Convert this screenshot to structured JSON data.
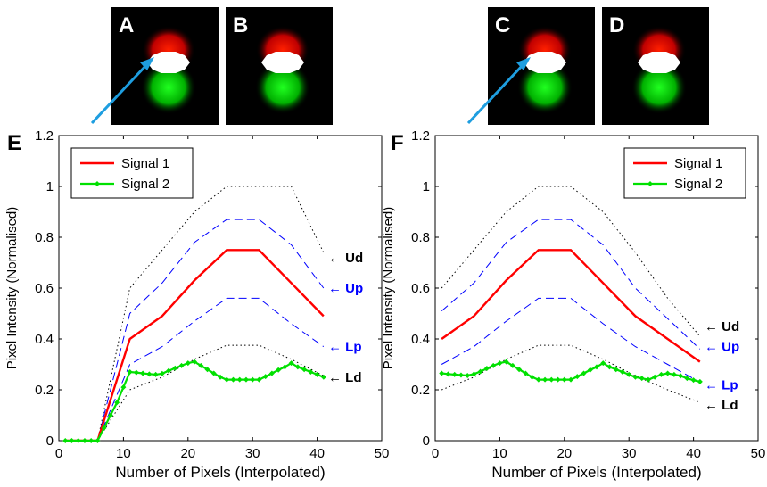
{
  "thumbnails": [
    {
      "letter": "A",
      "arrow": true
    },
    {
      "letter": "B",
      "arrow": false
    },
    {
      "letter": "C",
      "arrow": true
    },
    {
      "letter": "D",
      "arrow": false
    }
  ],
  "colors": {
    "signal1": "#ff0000",
    "signal2": "#00e000",
    "upper_lower_p": "#0000ff",
    "upper_lower_d": "#000000",
    "arrow": "#1e9ee0"
  },
  "chart_data": [
    {
      "type": "line",
      "panel": "E",
      "xlabel": "Number of Pixels (Interpolated)",
      "ylabel": "Pixel Intensity (Normalised)",
      "xlim": [
        0,
        50
      ],
      "ylim": [
        0,
        1.2
      ],
      "xticks": [
        "0",
        "10",
        "20",
        "30",
        "40",
        "50"
      ],
      "yticks": [
        "0",
        "0.2",
        "0.4",
        "0.6",
        "0.8",
        "1",
        "1.2"
      ],
      "legend_position": "top-left",
      "series": [
        {
          "name": "Signal 1",
          "style": "solid",
          "x": [
            1,
            6,
            11,
            16,
            21,
            26,
            31,
            36,
            41
          ],
          "y": [
            0,
            0,
            0.4,
            0.49,
            0.63,
            0.75,
            0.75,
            0.62,
            0.49
          ]
        },
        {
          "name": "Signal 2",
          "style": "dots",
          "x": [
            1,
            2,
            3,
            4,
            5,
            6,
            7,
            8,
            9,
            10,
            11,
            12,
            13,
            14,
            15,
            16,
            17,
            18,
            19,
            20,
            21,
            22,
            23,
            24,
            25,
            26,
            27,
            28,
            29,
            30,
            31,
            32,
            33,
            34,
            35,
            36,
            37,
            38,
            39,
            40,
            41
          ],
          "y": [
            0,
            0,
            0,
            0,
            0,
            0,
            0.05,
            0.1,
            0.15,
            0.21,
            0.27,
            0.268,
            0.265,
            0.262,
            0.26,
            0.264,
            0.275,
            0.285,
            0.295,
            0.305,
            0.31,
            0.295,
            0.28,
            0.265,
            0.25,
            0.24,
            0.24,
            0.24,
            0.24,
            0.24,
            0.24,
            0.252,
            0.265,
            0.278,
            0.29,
            0.305,
            0.29,
            0.28,
            0.27,
            0.26,
            0.25
          ]
        },
        {
          "name": "Up",
          "style": "dashed",
          "x": [
            6,
            11,
            16,
            21,
            26,
            31,
            36,
            41
          ],
          "y": [
            0,
            0.5,
            0.62,
            0.78,
            0.87,
            0.87,
            0.77,
            0.6
          ]
        },
        {
          "name": "Lp",
          "style": "dashed",
          "x": [
            6,
            11,
            16,
            21,
            26,
            31,
            36,
            41
          ],
          "y": [
            0,
            0.3,
            0.37,
            0.47,
            0.56,
            0.56,
            0.46,
            0.37
          ]
        },
        {
          "name": "Ud",
          "style": "dotted",
          "x": [
            6,
            11,
            16,
            21,
            26,
            31,
            36,
            41
          ],
          "y": [
            0,
            0.6,
            0.75,
            0.9,
            1.0,
            1.0,
            1.0,
            0.74
          ]
        },
        {
          "name": "Ld",
          "style": "dotted",
          "x": [
            6,
            11,
            16,
            21,
            26,
            31,
            36,
            41
          ],
          "y": [
            0,
            0.2,
            0.25,
            0.32,
            0.375,
            0.375,
            0.32,
            0.255
          ]
        }
      ],
      "annotations": [
        {
          "text": "Ud",
          "y": 0.72,
          "color": "#000000"
        },
        {
          "text": "Up",
          "y": 0.6,
          "color": "#0000ff"
        },
        {
          "text": "Lp",
          "y": 0.37,
          "color": "#0000ff"
        },
        {
          "text": "Ld",
          "y": 0.25,
          "color": "#000000"
        }
      ],
      "legend": [
        "Signal 1",
        "Signal 2"
      ]
    },
    {
      "type": "line",
      "panel": "F",
      "xlabel": "Number of Pixels (Interpolated)",
      "ylabel": "Pixel Intensity (Normalised)",
      "xlim": [
        0,
        50
      ],
      "ylim": [
        0,
        1.2
      ],
      "xticks": [
        "0",
        "10",
        "20",
        "30",
        "40",
        "50"
      ],
      "yticks": [
        "0",
        "0.2",
        "0.4",
        "0.6",
        "0.8",
        "1",
        "1.2"
      ],
      "legend_position": "top-right",
      "series": [
        {
          "name": "Signal 1",
          "style": "solid",
          "x": [
            1,
            6,
            11,
            16,
            21,
            26,
            31,
            36,
            41
          ],
          "y": [
            0.4,
            0.49,
            0.63,
            0.75,
            0.75,
            0.62,
            0.49,
            0.4,
            0.31
          ]
        },
        {
          "name": "Signal 2",
          "style": "dots",
          "x": [
            1,
            2,
            3,
            4,
            5,
            6,
            7,
            8,
            9,
            10,
            11,
            12,
            13,
            14,
            15,
            16,
            17,
            18,
            19,
            20,
            21,
            22,
            23,
            24,
            25,
            26,
            27,
            28,
            29,
            30,
            31,
            32,
            33,
            34,
            35,
            36,
            37,
            38,
            39,
            40,
            41
          ],
          "y": [
            0.265,
            0.262,
            0.26,
            0.258,
            0.256,
            0.262,
            0.272,
            0.284,
            0.295,
            0.305,
            0.31,
            0.295,
            0.28,
            0.265,
            0.25,
            0.24,
            0.24,
            0.24,
            0.24,
            0.24,
            0.24,
            0.252,
            0.265,
            0.278,
            0.29,
            0.305,
            0.29,
            0.28,
            0.27,
            0.26,
            0.25,
            0.245,
            0.24,
            0.25,
            0.26,
            0.265,
            0.26,
            0.255,
            0.245,
            0.238,
            0.232
          ]
        },
        {
          "name": "Up",
          "style": "dashed",
          "x": [
            1,
            6,
            11,
            16,
            21,
            26,
            31,
            36,
            41
          ],
          "y": [
            0.51,
            0.62,
            0.78,
            0.87,
            0.87,
            0.77,
            0.6,
            0.48,
            0.36
          ]
        },
        {
          "name": "Lp",
          "style": "dashed",
          "x": [
            1,
            6,
            11,
            16,
            21,
            26,
            31,
            36,
            41
          ],
          "y": [
            0.3,
            0.37,
            0.47,
            0.56,
            0.56,
            0.46,
            0.37,
            0.3,
            0.23
          ]
        },
        {
          "name": "Ud",
          "style": "dotted",
          "x": [
            1,
            6,
            11,
            16,
            21,
            26,
            31,
            36,
            41
          ],
          "y": [
            0.6,
            0.75,
            0.9,
            1.0,
            1.0,
            0.9,
            0.74,
            0.56,
            0.41
          ]
        },
        {
          "name": "Ld",
          "style": "dotted",
          "x": [
            1,
            6,
            11,
            16,
            21,
            26,
            31,
            36,
            41
          ],
          "y": [
            0.2,
            0.25,
            0.32,
            0.375,
            0.375,
            0.32,
            0.255,
            0.2,
            0.15
          ]
        }
      ],
      "annotations": [
        {
          "text": "Ud",
          "y": 0.45,
          "color": "#000000"
        },
        {
          "text": "Up",
          "y": 0.37,
          "color": "#0000ff"
        },
        {
          "text": "Lp",
          "y": 0.22,
          "color": "#0000ff"
        },
        {
          "text": "Ld",
          "y": 0.14,
          "color": "#000000"
        }
      ],
      "legend": [
        "Signal 1",
        "Signal 2"
      ]
    }
  ]
}
